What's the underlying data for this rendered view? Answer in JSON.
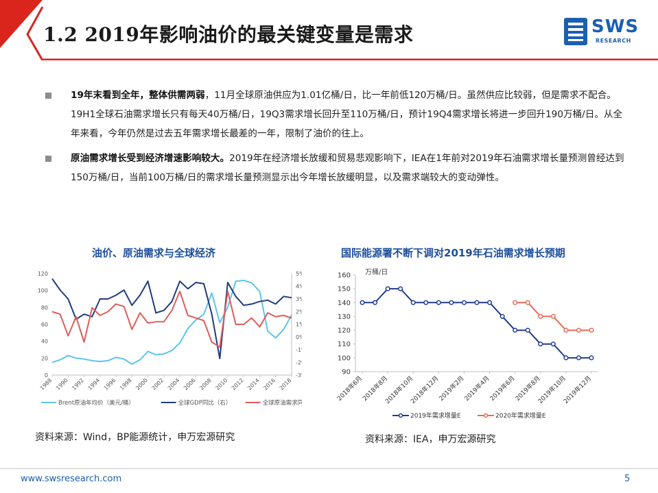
{
  "header": {
    "title": "1.2 2019年影响油价的最关键变量是需求",
    "logo_text": "SWS",
    "logo_sub": "RESEARCH",
    "accent_color": "#d9251c",
    "brand_color": "#1b5fb0"
  },
  "bullets": [
    {
      "bold": "19年末看到全年，整体供需两弱",
      "text": "，11月全球原油供应为1.01亿桶/日，比一年前低120万桶/日。虽然供应比较弱，但是需求不配合。19H1全球石油需求增长只有每天40万桶/日，19Q3需求增长回升至110万桶/日，预计19Q4需求增长将进一步回升190万桶/日。从全年来看，今年仍然是过去五年需求增长最差的一年，限制了油价的往上。"
    },
    {
      "bold": "原油需求增长受到经济增速影响较大。",
      "text": "2019年在经济增长放缓和贸易悲观影响下，IEA在1年前对2019年石油需求增长量预测曾经达到150万桶/日，当前100万桶/日的需求增长量预测显示出今年增长放缓明显，以及需求端较大的变动弹性。"
    }
  ],
  "left_chart": {
    "title": "油价、原油需求与全球经济",
    "source": "资料来源：Wind，BP能源统计，申万宏源研究"
  },
  "right_chart": {
    "title": "国际能源署不断下调对2019年石油需求增长预期",
    "source": "资料来源：IEA，申万宏源研究"
  },
  "chart_data": [
    {
      "type": "line",
      "title": "油价、原油需求与全球经济",
      "x": [
        1988,
        1989,
        1990,
        1991,
        1992,
        1993,
        1994,
        1995,
        1996,
        1997,
        1998,
        1999,
        2000,
        2001,
        2002,
        2003,
        2004,
        2005,
        2006,
        2007,
        2008,
        2009,
        2010,
        2011,
        2012,
        2013,
        2014,
        2015,
        2016,
        2017,
        2018
      ],
      "x_tick_labels": [
        "1988",
        "1990",
        "1992",
        "1994",
        "1996",
        "1998",
        "2000",
        "2002",
        "2004",
        "2006",
        "2008",
        "2010",
        "2012",
        "2014",
        "2016",
        "2018"
      ],
      "y_left": {
        "range": [
          0,
          120
        ],
        "ticks": [
          0,
          20,
          40,
          60,
          80,
          100,
          120
        ]
      },
      "y_right": {
        "range": [
          -3,
          5
        ],
        "ticks": [
          "-3%",
          "-2%",
          "-1%",
          "0%",
          "1%",
          "2%",
          "3%",
          "4%",
          "5%"
        ]
      },
      "series": [
        {
          "name": "Brent原油年均价（美元/桶）",
          "axis": "left",
          "color": "#5bc5ea",
          "values": [
            15,
            18,
            23,
            20,
            19,
            17,
            16,
            17,
            21,
            19,
            13,
            18,
            28,
            24,
            25,
            29,
            38,
            55,
            65,
            72,
            97,
            62,
            80,
            111,
            112,
            109,
            99,
            52,
            44,
            54,
            71
          ]
        },
        {
          "name": "全球GDP同比（右）",
          "axis": "right",
          "color": "#1f3b7a",
          "values": [
            4.6,
            3.7,
            3.0,
            1.4,
            1.8,
            1.6,
            3.0,
            3.0,
            3.3,
            3.7,
            2.5,
            3.3,
            4.4,
            1.9,
            2.1,
            2.8,
            4.4,
            3.8,
            4.3,
            4.2,
            1.8,
            -1.7,
            4.3,
            3.2,
            2.5,
            2.6,
            2.8,
            2.9,
            2.6,
            3.2,
            3.1
          ]
        },
        {
          "name": "全球原油需求同比（右）",
          "axis": "right",
          "color": "#e15b5b",
          "values": [
            2.0,
            1.8,
            0.1,
            1.6,
            -0.4,
            2.3,
            1.7,
            2.0,
            2.6,
            2.4,
            0.6,
            1.9,
            1.1,
            1.2,
            1.2,
            2.1,
            3.6,
            1.7,
            1.5,
            1.3,
            -0.4,
            -0.8,
            3.6,
            1.0,
            1.0,
            1.5,
            0.8,
            1.9,
            1.6,
            1.7,
            1.5
          ]
        }
      ]
    },
    {
      "type": "line",
      "title": "国际能源署不断下调对2019年石油需求增长预期",
      "ylabel": "万桶/日",
      "ylim": [
        90,
        160
      ],
      "y_ticks": [
        90,
        100,
        110,
        120,
        130,
        140,
        150,
        160
      ],
      "categories": [
        "2018年6月",
        "2018年7月",
        "2018年8月",
        "2018年9月",
        "2018年10月",
        "2018年11月",
        "2018年12月",
        "2019年1月",
        "2019年2月",
        "2019年3月",
        "2019年4月",
        "2019年5月",
        "2019年6月",
        "2019年7月",
        "2019年8月",
        "2019年9月",
        "2019年10月",
        "2019年11月",
        "2019年12月"
      ],
      "x_tick_labels": [
        "2018年6月",
        "2018年8月",
        "2018年10月",
        "2018年12月",
        "2019年2月",
        "2019年4月",
        "2019年6月",
        "2019年8月",
        "2019年10月",
        "2019年12月"
      ],
      "series": [
        {
          "name": "2019年需求增量E",
          "color": "#1f3b8f",
          "values": [
            140,
            140,
            150,
            150,
            140,
            140,
            140,
            140,
            140,
            140,
            140,
            130,
            120,
            120,
            110,
            110,
            100,
            100,
            100
          ]
        },
        {
          "name": "2020年需求增量E",
          "color": "#e86a55",
          "values": [
            null,
            null,
            null,
            null,
            null,
            null,
            null,
            null,
            null,
            null,
            null,
            null,
            140,
            140,
            130,
            130,
            120,
            120,
            120
          ]
        }
      ]
    }
  ],
  "footer": {
    "url": "www.swsresearch.com",
    "page": "5"
  }
}
